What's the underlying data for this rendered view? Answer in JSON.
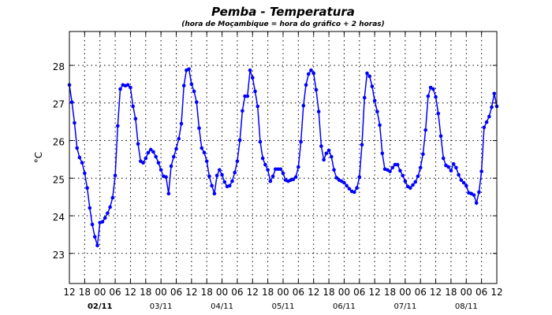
{
  "chart_data": {
    "type": "line",
    "title": "Pemba - Temperatura",
    "subtitle": "(hora de Moçambique = hora do gráfico + 2 horas)",
    "xlabel": "",
    "ylabel": "°C",
    "ylim": [
      22.2,
      28.9
    ],
    "yticks": [
      23,
      24,
      25,
      26,
      27,
      28
    ],
    "x_start": "01/11 12:00",
    "x_step_hours": 1,
    "x_range_hours": [
      0,
      168
    ],
    "xtick_labels": [
      "12",
      "18",
      "00",
      "06",
      "12",
      "18",
      "00",
      "06",
      "12",
      "18",
      "00",
      "06",
      "12",
      "18",
      "00",
      "06",
      "12",
      "18",
      "00",
      "06",
      "12",
      "18",
      "00",
      "06",
      "12",
      "18",
      "00",
      "06",
      "12"
    ],
    "date_labels": [
      "02/11",
      "03/11",
      "04/11",
      "05/11",
      "06/11",
      "07/11",
      "08/11"
    ],
    "grid": true,
    "line_color": "#0000ff",
    "series": [
      {
        "name": "Temperatura",
        "values": [
          27.48,
          27.02,
          26.47,
          25.8,
          25.55,
          25.41,
          25.13,
          24.74,
          24.21,
          23.77,
          23.44,
          23.21,
          23.82,
          23.84,
          23.94,
          24.07,
          24.23,
          24.48,
          25.07,
          26.39,
          27.37,
          27.48,
          27.46,
          27.48,
          27.41,
          26.91,
          26.58,
          25.91,
          25.45,
          25.41,
          25.53,
          25.68,
          25.76,
          25.7,
          25.57,
          25.41,
          25.22,
          25.05,
          25.03,
          24.59,
          25.32,
          25.57,
          25.78,
          26.05,
          26.45,
          27.46,
          27.87,
          27.9,
          27.5,
          27.31,
          27.02,
          26.33,
          25.8,
          25.68,
          25.45,
          25.05,
          24.8,
          24.59,
          25.07,
          25.22,
          25.09,
          24.9,
          24.78,
          24.8,
          24.92,
          25.15,
          25.45,
          26.01,
          26.79,
          27.18,
          27.18,
          27.87,
          27.67,
          27.31,
          26.91,
          25.97,
          25.53,
          25.36,
          25.22,
          24.92,
          25.05,
          25.24,
          25.24,
          25.24,
          25.13,
          24.95,
          24.92,
          24.95,
          24.97,
          25.03,
          25.3,
          25.97,
          26.93,
          27.48,
          27.77,
          27.87,
          27.79,
          27.35,
          26.77,
          25.85,
          25.49,
          25.66,
          25.74,
          25.57,
          25.22,
          25.01,
          24.95,
          24.92,
          24.88,
          24.8,
          24.72,
          24.65,
          24.63,
          24.74,
          25.03,
          25.89,
          27.14,
          27.79,
          27.71,
          27.44,
          27.06,
          26.77,
          26.41,
          25.66,
          25.24,
          25.22,
          25.18,
          25.28,
          25.36,
          25.36,
          25.2,
          25.07,
          24.92,
          24.78,
          24.74,
          24.82,
          24.9,
          25.05,
          25.28,
          25.64,
          26.28,
          27.18,
          27.41,
          27.37,
          27.16,
          26.72,
          26.12,
          25.53,
          25.34,
          25.3,
          25.2,
          25.38,
          25.28,
          25.09,
          24.95,
          24.88,
          24.8,
          24.61,
          24.59,
          24.55,
          24.34,
          24.63,
          25.18,
          26.35,
          26.49,
          26.64,
          26.89,
          27.25,
          26.91
        ]
      }
    ]
  }
}
